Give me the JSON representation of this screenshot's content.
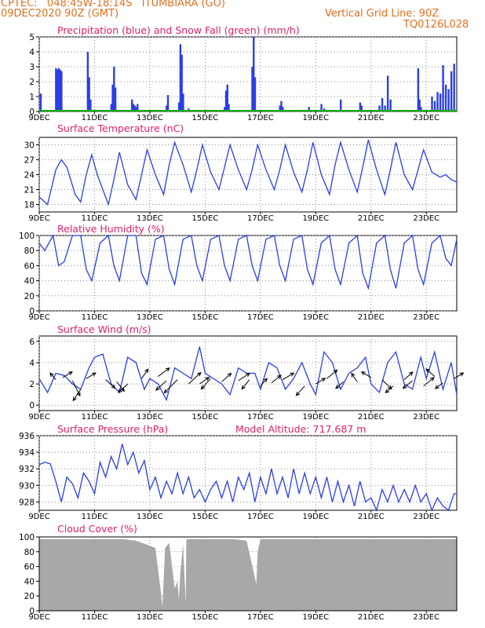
{
  "header": {
    "line1": "CPTEC:   048:45W-18:14S   ITUMBIARA (GO)",
    "line2": "09DEC2020 90Z (GMT)",
    "grid_note": "Vertical Grid Line: 90Z",
    "model_code": "TQ0126L028"
  },
  "xaxis": {
    "labels": [
      "9DEC",
      "11DEC",
      "13DEC",
      "15DEC",
      "17DEC",
      "19DEC",
      "21DEC",
      "23DEC"
    ],
    "days": [
      9,
      11,
      13,
      15,
      17,
      19,
      21,
      23
    ],
    "range": [
      9,
      24.1
    ]
  },
  "colors": {
    "line": "#2a3ee8",
    "title": "#e0206a",
    "header": "#e07020",
    "snow": "#00b000",
    "cloud": "#a8a8a8"
  },
  "chart_data": [
    {
      "type": "bar",
      "title": "Precipitation (blue) and Snow Fall (green) (mm/h)",
      "yticks": [
        0,
        1,
        2,
        3,
        4,
        5
      ],
      "ylim": [
        0,
        5
      ],
      "series": [
        {
          "name": "Precipitation",
          "x": [
            9.05,
            9.6,
            9.65,
            9.7,
            9.75,
            9.8,
            10.75,
            10.8,
            10.85,
            11.6,
            11.65,
            11.7,
            11.75,
            12.35,
            12.4,
            12.45,
            12.5,
            12.55,
            13.6,
            13.65,
            14.05,
            14.1,
            14.15,
            14.2,
            14.4,
            14.7,
            15.7,
            15.75,
            15.8,
            15.85,
            16.7,
            16.75,
            16.8,
            17.7,
            17.75,
            17.8,
            18.7,
            18.75,
            19.2,
            19.3,
            19.9,
            20.6,
            20.65,
            21.3,
            21.4,
            21.5,
            21.6,
            21.7,
            22.7,
            22.75,
            22.8,
            23.2,
            23.3,
            23.4,
            23.5,
            23.6,
            23.7,
            23.8,
            23.9,
            24.0
          ],
          "values": [
            1.2,
            2.9,
            2.8,
            2.9,
            2.8,
            2.7,
            4.0,
            2.3,
            0.8,
            0.5,
            1.8,
            3.0,
            1.6,
            0.8,
            0.5,
            0.4,
            0.3,
            0.5,
            0.4,
            1.1,
            0.6,
            4.5,
            3.8,
            1.2,
            0.2,
            0.1,
            0.3,
            1.4,
            1.8,
            0.5,
            3.0,
            5.0,
            2.3,
            0.4,
            0.7,
            0.3,
            0.1,
            0.3,
            0.5,
            0.2,
            0.8,
            0.6,
            0.4,
            0.4,
            0.9,
            0.4,
            2.4,
            0.8,
            2.9,
            0.8,
            0.3,
            1.0,
            0.7,
            1.3,
            1.2,
            3.1,
            1.8,
            1.5,
            2.7,
            3.2
          ]
        },
        {
          "name": "Snow Fall",
          "x": [
            9,
            24.1
          ],
          "values": [
            0,
            0
          ]
        }
      ]
    },
    {
      "type": "line",
      "title": "Surface Temperature (nC)",
      "yticks": [
        18,
        21,
        24,
        27,
        30
      ],
      "ylim": [
        16.5,
        31.5
      ],
      "x": [
        9.0,
        9.3,
        9.6,
        9.8,
        10.0,
        10.3,
        10.5,
        10.7,
        10.9,
        11.1,
        11.5,
        11.7,
        11.9,
        12.2,
        12.5,
        12.7,
        12.9,
        13.2,
        13.5,
        13.7,
        13.9,
        14.2,
        14.5,
        14.7,
        14.9,
        15.2,
        15.5,
        15.7,
        15.9,
        16.2,
        16.5,
        16.7,
        16.9,
        17.2,
        17.5,
        17.7,
        17.9,
        18.2,
        18.5,
        18.7,
        18.9,
        19.2,
        19.5,
        19.7,
        19.9,
        20.2,
        20.5,
        20.7,
        20.9,
        21.2,
        21.5,
        21.7,
        21.9,
        22.2,
        22.5,
        22.7,
        22.9,
        23.2,
        23.5,
        23.7,
        23.9,
        24.1
      ],
      "series": [
        {
          "values": [
            19.5,
            18.0,
            25.0,
            27.0,
            25.5,
            20.0,
            18.5,
            24.0,
            28.0,
            24.0,
            18.0,
            23.0,
            28.5,
            22.0,
            19.0,
            24.0,
            29.0,
            24.0,
            20.0,
            26.0,
            30.5,
            26.0,
            20.5,
            25.0,
            30.0,
            24.5,
            21.0,
            25.5,
            30.0,
            25.0,
            21.0,
            25.0,
            30.0,
            25.0,
            21.0,
            25.0,
            30.0,
            24.5,
            20.5,
            25.0,
            30.5,
            24.0,
            20.0,
            26.0,
            30.5,
            25.0,
            20.5,
            25.5,
            31.0,
            25.0,
            20.0,
            25.0,
            30.5,
            24.0,
            21.0,
            25.0,
            29.0,
            24.5,
            23.5,
            24.0,
            23.0,
            22.5
          ]
        }
      ]
    },
    {
      "type": "line",
      "title": "Relative Humidity (%)",
      "yticks": [
        0,
        20,
        40,
        60,
        80,
        100
      ],
      "ylim": [
        0,
        100
      ],
      "x": [
        9.0,
        9.2,
        9.5,
        9.7,
        9.9,
        10.2,
        10.5,
        10.7,
        10.9,
        11.2,
        11.5,
        11.7,
        11.9,
        12.2,
        12.5,
        12.7,
        12.9,
        13.2,
        13.5,
        13.7,
        13.9,
        14.2,
        14.5,
        14.7,
        14.9,
        15.2,
        15.5,
        15.7,
        15.9,
        16.2,
        16.5,
        16.7,
        16.9,
        17.2,
        17.5,
        17.7,
        17.9,
        18.2,
        18.5,
        18.7,
        18.9,
        19.2,
        19.5,
        19.7,
        19.9,
        20.2,
        20.5,
        20.7,
        20.9,
        21.2,
        21.5,
        21.7,
        21.9,
        22.2,
        22.5,
        22.7,
        22.9,
        23.2,
        23.5,
        23.7,
        23.9,
        24.1
      ],
      "series": [
        {
          "values": [
            90,
            80,
            100,
            60,
            65,
            100,
            100,
            55,
            40,
            90,
            100,
            60,
            40,
            100,
            100,
            50,
            35,
            95,
            100,
            55,
            35,
            95,
            100,
            60,
            40,
            95,
            100,
            60,
            40,
            95,
            100,
            60,
            40,
            95,
            100,
            60,
            40,
            95,
            100,
            55,
            35,
            90,
            100,
            55,
            35,
            90,
            100,
            50,
            30,
            90,
            100,
            55,
            30,
            90,
            100,
            55,
            35,
            90,
            100,
            70,
            60,
            95
          ]
        }
      ]
    },
    {
      "type": "line",
      "title": "Surface Wind (m/s)",
      "yticks": [
        0,
        2,
        4,
        6
      ],
      "ylim": [
        -0.5,
        6.5
      ],
      "x": [
        9.0,
        9.3,
        9.6,
        9.9,
        10.2,
        10.5,
        10.8,
        11.0,
        11.3,
        11.6,
        11.9,
        12.2,
        12.5,
        12.8,
        13.0,
        13.3,
        13.6,
        13.9,
        14.2,
        14.5,
        14.8,
        15.0,
        15.3,
        15.6,
        15.9,
        16.2,
        16.5,
        16.8,
        17.0,
        17.3,
        17.6,
        17.9,
        18.2,
        18.5,
        18.8,
        19.0,
        19.3,
        19.6,
        19.9,
        20.2,
        20.5,
        20.8,
        21.0,
        21.3,
        21.6,
        21.9,
        22.2,
        22.5,
        22.8,
        23.0,
        23.3,
        23.6,
        23.9,
        24.1
      ],
      "series": [
        {
          "values": [
            2.5,
            1.2,
            3.0,
            2.8,
            2.0,
            1.5,
            3.5,
            4.5,
            4.8,
            2.0,
            1.2,
            4.5,
            4.0,
            1.5,
            2.5,
            2.0,
            0.5,
            3.5,
            3.0,
            2.5,
            5.5,
            3.0,
            2.5,
            2.0,
            1.0,
            3.5,
            3.0,
            3.0,
            1.5,
            4.0,
            3.5,
            1.5,
            2.5,
            4.0,
            2.0,
            1.0,
            5.0,
            4.0,
            1.5,
            3.0,
            3.5,
            4.5,
            2.0,
            1.2,
            4.0,
            5.0,
            2.0,
            1.5,
            4.5,
            2.5,
            5.0,
            1.5,
            4.0,
            1.0
          ]
        }
      ]
    },
    {
      "type": "line",
      "title": "Surface Pressure (hPa)",
      "subtitle": "Model Altitude: 717.687 m",
      "yticks": [
        928,
        930,
        932,
        934,
        936
      ],
      "ylim": [
        927,
        936
      ],
      "x": [
        9.0,
        9.2,
        9.4,
        9.6,
        9.8,
        10.0,
        10.2,
        10.4,
        10.6,
        10.8,
        11.0,
        11.2,
        11.4,
        11.6,
        11.8,
        12.0,
        12.2,
        12.4,
        12.6,
        12.8,
        13.0,
        13.2,
        13.4,
        13.6,
        13.8,
        14.0,
        14.2,
        14.4,
        14.6,
        14.8,
        15.0,
        15.2,
        15.4,
        15.6,
        15.8,
        16.0,
        16.2,
        16.4,
        16.6,
        16.8,
        17.0,
        17.2,
        17.4,
        17.6,
        17.8,
        18.0,
        18.2,
        18.4,
        18.6,
        18.8,
        19.0,
        19.2,
        19.4,
        19.6,
        19.8,
        20.0,
        20.2,
        20.4,
        20.6,
        20.8,
        21.0,
        21.2,
        21.4,
        21.6,
        21.8,
        22.0,
        22.2,
        22.4,
        22.6,
        22.8,
        23.0,
        23.2,
        23.4,
        23.6,
        23.8,
        24.0,
        24.1
      ],
      "series": [
        {
          "values": [
            932.5,
            932.8,
            932.6,
            930.5,
            928.0,
            931.0,
            930.2,
            928.5,
            931.5,
            930.5,
            929.0,
            932.8,
            931.0,
            933.5,
            932.0,
            935.0,
            932.5,
            934.0,
            931.5,
            933.0,
            929.5,
            931.0,
            928.5,
            930.5,
            929.0,
            931.5,
            929.0,
            931.0,
            928.5,
            929.5,
            928.0,
            929.5,
            930.5,
            928.5,
            930.5,
            928.0,
            931.0,
            929.5,
            931.5,
            928.0,
            931.0,
            929.0,
            932.0,
            929.0,
            931.0,
            928.5,
            932.0,
            929.0,
            931.5,
            929.0,
            931.0,
            928.5,
            931.0,
            928.0,
            930.5,
            928.0,
            930.0,
            927.5,
            930.5,
            928.0,
            928.5,
            927.0,
            929.5,
            928.0,
            930.0,
            928.0,
            929.5,
            928.0,
            930.0,
            928.0,
            929.0,
            927.0,
            928.5,
            927.5,
            926.5,
            929.0,
            929.0
          ]
        }
      ]
    },
    {
      "type": "area",
      "title": "Cloud Cover (%)",
      "yticks": [
        0,
        20,
        40,
        60,
        80,
        100
      ],
      "ylim": [
        0,
        100
      ],
      "x": [
        9.0,
        10.0,
        11.0,
        12.0,
        12.5,
        13.0,
        13.2,
        13.4,
        13.45,
        13.5,
        13.55,
        13.7,
        13.9,
        14.0,
        14.05,
        14.1,
        14.2,
        14.3,
        14.32,
        14.4,
        14.5,
        15.0,
        16.0,
        16.5,
        16.8,
        16.85,
        16.9,
        17.0,
        17.5,
        18.0,
        19.0,
        20.0,
        21.0,
        22.0,
        23.0,
        24.1
      ],
      "series": [
        {
          "values": [
            97,
            97,
            97,
            97,
            95,
            88,
            85,
            25,
            5,
            40,
            85,
            92,
            30,
            40,
            15,
            50,
            90,
            10,
            96,
            97,
            97,
            97,
            97,
            95,
            45,
            35,
            80,
            97,
            97,
            97,
            97,
            97,
            97,
            97,
            97,
            97
          ]
        }
      ]
    },
    {
      "type": "scatter",
      "title": "Surface Wind arrows",
      "x": [
        9.6,
        9.85,
        10.2,
        10.5,
        10.7,
        11.4,
        11.8,
        12.2,
        12.7,
        13.3,
        13.6,
        14.0,
        14.4,
        14.8,
        15.2,
        15.6,
        16.2,
        16.6,
        17.0,
        17.4,
        17.8,
        18.6,
        19.0,
        19.4,
        20.0,
        20.5,
        21.0,
        21.4,
        21.8,
        22.2,
        22.5,
        22.9,
        23.3,
        23.6,
        24.0
      ],
      "y": [
        2.4,
        2.6,
        2.3,
        1.5,
        2.5,
        2.4,
        2.2,
        2.0,
        2.5,
        2.7,
        2.3,
        2.4,
        2.0,
        2.0,
        2.5,
        2.2,
        2.3,
        2.4,
        1.8,
        2.1,
        2.4,
        1.8,
        2.0,
        2.5,
        2.2,
        2.2,
        2.6,
        2.4,
        1.8,
        2.4,
        2.3,
        1.8,
        2.7,
        2.1,
        2.5
      ],
      "values": [
        [
          -0.6,
          0.7
        ],
        [
          1.0,
          0.6
        ],
        [
          0.8,
          -1.6
        ],
        [
          -0.8,
          -1.2
        ],
        [
          1.0,
          0.6
        ],
        [
          1.0,
          -0.9
        ],
        [
          0.8,
          -1.0
        ],
        [
          -1.0,
          -0.9
        ],
        [
          0.7,
          1.0
        ],
        [
          1.2,
          0.9
        ],
        [
          -1.1,
          -1.0
        ],
        [
          -1.4,
          -1.4
        ],
        [
          1.3,
          1.2
        ],
        [
          1.0,
          0.7
        ],
        [
          -1.0,
          -1.1
        ],
        [
          1.0,
          0.9
        ],
        [
          1.2,
          0.8
        ],
        [
          -0.8,
          -1.0
        ],
        [
          0.7,
          0.8
        ],
        [
          1.0,
          0.8
        ],
        [
          1.2,
          0.7
        ],
        [
          -0.9,
          -1.0
        ],
        [
          1.0,
          0.6
        ],
        [
          1.1,
          0.9
        ],
        [
          -0.8,
          -0.7
        ],
        [
          -0.6,
          0.9
        ],
        [
          -1.0,
          0.6
        ],
        [
          1.0,
          -1.0
        ],
        [
          -0.8,
          -0.7
        ],
        [
          0.9,
          0.8
        ],
        [
          -1.0,
          -0.8
        ],
        [
          1.1,
          0.9
        ],
        [
          -0.9,
          0.8
        ],
        [
          -0.8,
          -0.6
        ],
        [
          1.0,
          0.6
        ]
      ]
    }
  ]
}
